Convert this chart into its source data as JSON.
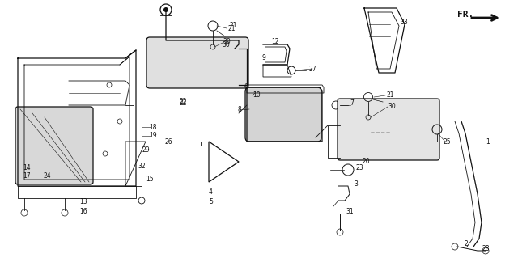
{
  "bg_color": "#ffffff",
  "line_color": "#111111",
  "figsize": [
    6.4,
    3.19
  ],
  "dpi": 100,
  "xlim": [
    0,
    640
  ],
  "ylim": [
    0,
    319
  ]
}
